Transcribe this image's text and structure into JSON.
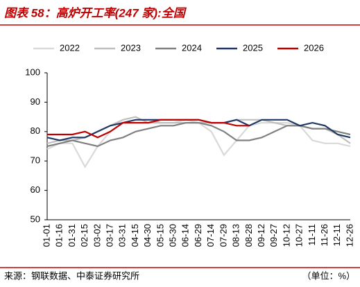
{
  "chart_data": {
    "type": "line",
    "title": "图表 58：高炉开工率(247 家):全国",
    "source": "来源：钢联数据、中泰证券研究所",
    "unit_note": "（单位：%）",
    "categories": [
      "01-01",
      "01-16",
      "01-31",
      "02-15",
      "03-02",
      "03-17",
      "03-31",
      "04-15",
      "04-30",
      "05-15",
      "05-30",
      "06-14",
      "06-29",
      "07-14",
      "07-29",
      "08-13",
      "08-28",
      "09-12",
      "09-27",
      "10-12",
      "10-27",
      "11-11",
      "11-26",
      "12-11",
      "12-26"
    ],
    "series": [
      {
        "name": "2022",
        "color": "#d9d9d9",
        "values": [
          74,
          76,
          76,
          68,
          75,
          80,
          83,
          84,
          84,
          83,
          83,
          84,
          83,
          80,
          72,
          77,
          82,
          83,
          83,
          83,
          82,
          77,
          76,
          76,
          75
        ]
      },
      {
        "name": "2023",
        "color": "#bfbfbf",
        "values": [
          76,
          77,
          77,
          78,
          80,
          82,
          84,
          85,
          83,
          83,
          83,
          83,
          83,
          83,
          83,
          84,
          84,
          84,
          83,
          82,
          82,
          81,
          81,
          79,
          76
        ]
      },
      {
        "name": "2024",
        "color": "#808080",
        "values": [
          75,
          76,
          77,
          76,
          75,
          77,
          78,
          80,
          81,
          82,
          82,
          83,
          83,
          82,
          80,
          77,
          77,
          78,
          80,
          82,
          82,
          81,
          81,
          80,
          79
        ]
      },
      {
        "name": "2025",
        "color": "#1f3864",
        "values": [
          78,
          77,
          78,
          78,
          80,
          82,
          83,
          84,
          84,
          84,
          84,
          84,
          84,
          83,
          83,
          84,
          82,
          84,
          84,
          84,
          82,
          83,
          82,
          79,
          78
        ]
      },
      {
        "name": "2026",
        "color": "#c00000",
        "values": [
          79,
          79,
          79,
          80,
          78,
          80,
          83,
          83,
          83,
          84,
          84,
          84,
          84,
          83,
          83,
          82,
          82,
          null,
          null,
          null,
          null,
          null,
          null,
          null,
          null
        ]
      }
    ],
    "ylim": [
      50,
      100
    ],
    "yticks": [
      50,
      60,
      70,
      80,
      90,
      100
    ],
    "grid": false
  }
}
